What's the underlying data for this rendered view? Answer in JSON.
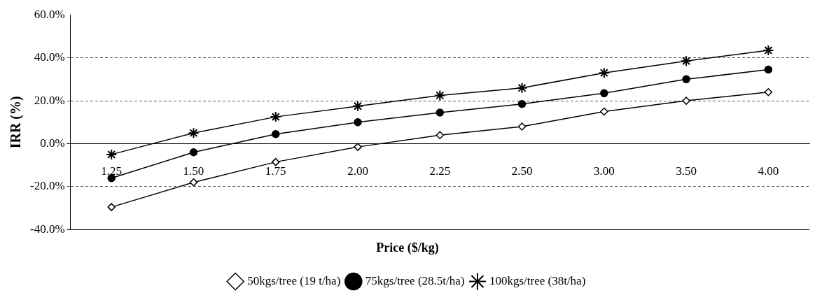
{
  "chart_data": {
    "type": "line",
    "xlabel": "Price ($/kg)",
    "ylabel": "IRR (%)",
    "categories": [
      "1.25",
      "1.50",
      "1.75",
      "2.00",
      "2.25",
      "2.50",
      "3.00",
      "3.50",
      "4.00"
    ],
    "series": [
      {
        "name": "50kgs/tree (19 t/ha)",
        "color": "#000000",
        "marker": "diamond",
        "values": [
          -29.5,
          -18,
          -8.5,
          -1.5,
          4,
          8,
          15,
          20,
          24
        ]
      },
      {
        "name": "75kgs/tree (28.5t/ha)",
        "color": "#000000",
        "marker": "circle",
        "values": [
          -16,
          -4,
          4.5,
          10,
          14.5,
          18.5,
          23.5,
          30,
          34.5
        ]
      },
      {
        "name": "100kgs/tree (38t/ha)",
        "color": "#000000",
        "marker": "cross",
        "values": [
          -5,
          5,
          12.5,
          17.5,
          22.5,
          26,
          33,
          38.5,
          43.5
        ]
      }
    ],
    "ylim": [
      -40,
      60
    ],
    "yticks": [
      {
        "value": -40,
        "label": "-40.0%"
      },
      {
        "value": -20,
        "label": "-20.0%"
      },
      {
        "value": 0,
        "label": "0.0%"
      },
      {
        "value": 20,
        "label": "20.0%"
      },
      {
        "value": 40,
        "label": "40.0%"
      },
      {
        "value": 60,
        "label": "60.0%"
      }
    ],
    "grid": "y",
    "line_style": "solid",
    "legend": "bottom"
  }
}
